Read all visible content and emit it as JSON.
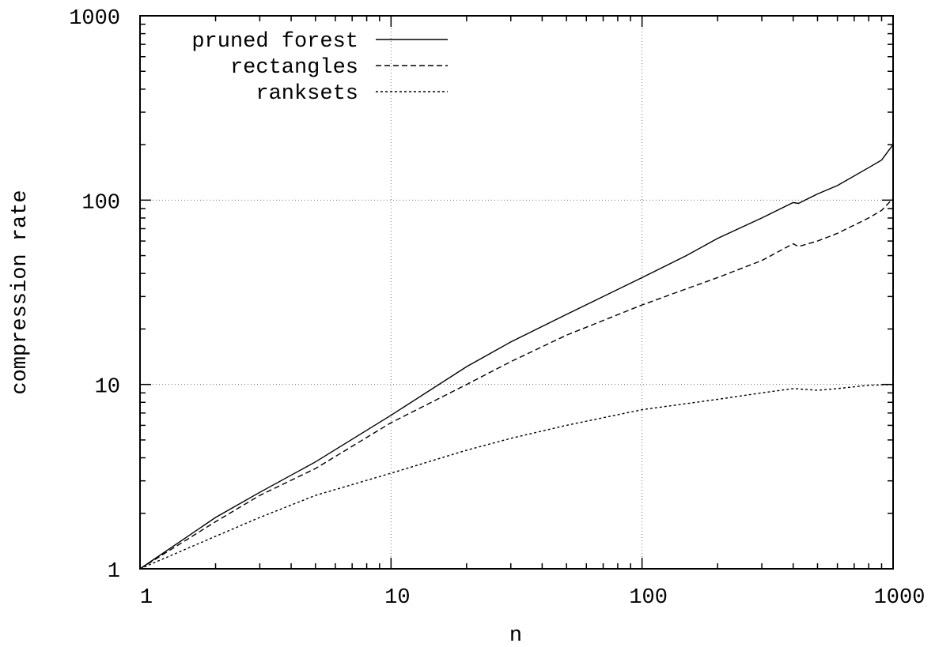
{
  "chart_data": {
    "type": "line",
    "xlabel": "n",
    "ylabel": "compression rate",
    "xscale": "log",
    "yscale": "log",
    "xlim": [
      1,
      1000
    ],
    "ylim": [
      1,
      1000
    ],
    "x_ticks": [
      {
        "value": 1,
        "label": "1"
      },
      {
        "value": 10,
        "label": "10"
      },
      {
        "value": 100,
        "label": "100"
      },
      {
        "value": 1000,
        "label": "1000"
      }
    ],
    "y_ticks": [
      {
        "value": 1,
        "label": "1"
      },
      {
        "value": 10,
        "label": "10"
      },
      {
        "value": 100,
        "label": "100"
      },
      {
        "value": 1000,
        "label": "1000"
      }
    ],
    "grid": true,
    "legend_position": "top-left",
    "series": [
      {
        "name": "pruned forest",
        "style": "solid",
        "points": [
          [
            1,
            1
          ],
          [
            2,
            1.9
          ],
          [
            3,
            2.6
          ],
          [
            5,
            3.8
          ],
          [
            10,
            6.8
          ],
          [
            20,
            12.5
          ],
          [
            30,
            17
          ],
          [
            50,
            24
          ],
          [
            100,
            38
          ],
          [
            150,
            50
          ],
          [
            200,
            62
          ],
          [
            300,
            80
          ],
          [
            400,
            97
          ],
          [
            420,
            96
          ],
          [
            500,
            108
          ],
          [
            600,
            120
          ],
          [
            800,
            150
          ],
          [
            900,
            165
          ],
          [
            1000,
            200
          ]
        ]
      },
      {
        "name": "rectangles",
        "style": "dashed",
        "points": [
          [
            1,
            1
          ],
          [
            2,
            1.8
          ],
          [
            3,
            2.5
          ],
          [
            5,
            3.5
          ],
          [
            10,
            6.2
          ],
          [
            20,
            10
          ],
          [
            30,
            13.3
          ],
          [
            50,
            18.5
          ],
          [
            100,
            27
          ],
          [
            150,
            33
          ],
          [
            200,
            38
          ],
          [
            300,
            47
          ],
          [
            400,
            58
          ],
          [
            420,
            56
          ],
          [
            500,
            60
          ],
          [
            600,
            66
          ],
          [
            800,
            80
          ],
          [
            900,
            88
          ],
          [
            1000,
            102
          ]
        ]
      },
      {
        "name": "ranksets",
        "style": "dotted",
        "points": [
          [
            1,
            1
          ],
          [
            2,
            1.5
          ],
          [
            3,
            1.9
          ],
          [
            5,
            2.5
          ],
          [
            10,
            3.3
          ],
          [
            20,
            4.4
          ],
          [
            30,
            5.1
          ],
          [
            50,
            6
          ],
          [
            100,
            7.3
          ],
          [
            200,
            8.3
          ],
          [
            300,
            9
          ],
          [
            400,
            9.5
          ],
          [
            500,
            9.3
          ],
          [
            600,
            9.5
          ],
          [
            800,
            9.9
          ],
          [
            1000,
            10
          ]
        ]
      }
    ]
  }
}
